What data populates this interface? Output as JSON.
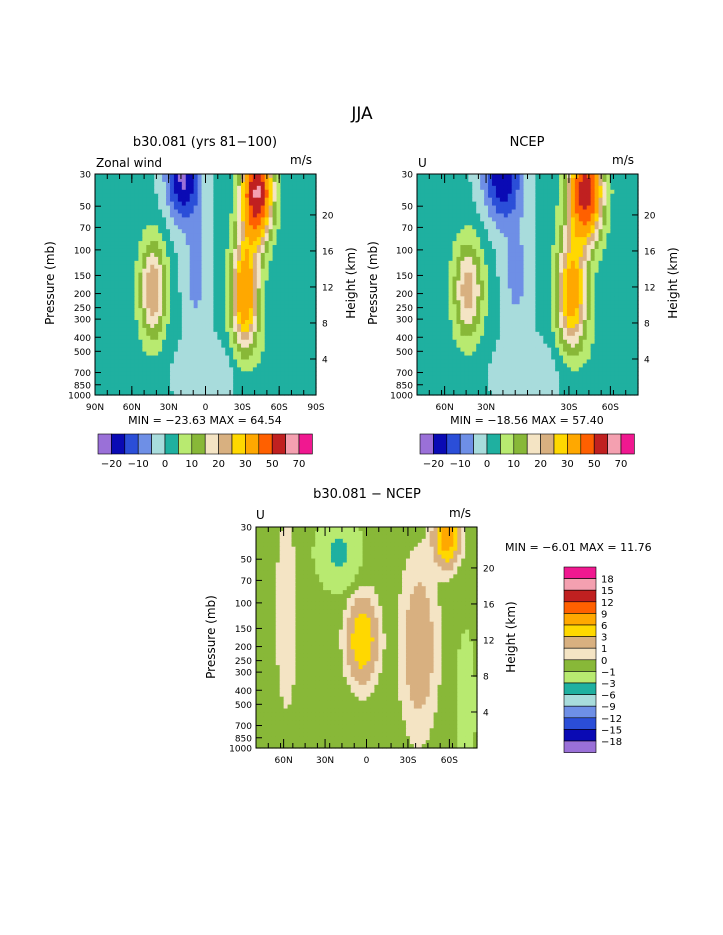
{
  "figure": {
    "title": "JJA"
  },
  "panels": [
    {
      "title": "b30.081 (yrs 81−100)",
      "label_left": "Zonal wind",
      "units": "m/s",
      "ylabel": "Pressure (mb)",
      "ylabel_right": "Height (km)",
      "stats": "MIN = −23.63   MAX =  64.54"
    },
    {
      "title": "NCEP",
      "label_left": "U",
      "units": "m/s",
      "ylabel": "Pressure (mb)",
      "ylabel_right": "Height (km)",
      "stats": "MIN = −18.56   MAX =  57.40"
    },
    {
      "title": "b30.081 − NCEP",
      "label_left": "U",
      "units": "m/s",
      "ylabel": "Pressure (mb)",
      "ylabel_right": "Height (km)",
      "stats": "MIN =   −6.01   MAX =  11.76"
    }
  ],
  "colors": {
    "wind_scale": [
      "#9a70d8",
      "#0a0ab4",
      "#2b4ed8",
      "#6e8fe6",
      "#a8dcdc",
      "#1fb0a0",
      "#b8ea70",
      "#88b838",
      "#f4e4c4",
      "#d8b080",
      "#ffd800",
      "#ffa800",
      "#ff6000",
      "#c02020",
      "#f4a0b0",
      "#f01890"
    ],
    "diff_scale": [
      "#9a70d8",
      "#0a0ab4",
      "#2b4ed8",
      "#6e8fe6",
      "#a8dcdc",
      "#1fb0a0",
      "#b8ea70",
      "#88b838",
      "#f4e4c4",
      "#d8b080",
      "#ffd800",
      "#ffa800",
      "#ff6000",
      "#c02020",
      "#f4a0b0",
      "#f01890"
    ]
  },
  "chart_data": [
    {
      "type": "heatmap",
      "title": "b30.081 (yrs 81−100)",
      "ylabel": "Pressure (mb)",
      "y2label": "Height (km)",
      "x_ticks": [
        "90N",
        "60N",
        "30N",
        "0",
        "30S",
        "60S",
        "90S"
      ],
      "y_ticks": [
        "30",
        "50",
        "70",
        "100",
        "150",
        "200",
        "250",
        "300",
        "400",
        "500",
        "700",
        "850",
        "1000"
      ],
      "y2_ticks": [
        "4",
        "8",
        "12",
        "16",
        "20"
      ],
      "colorbar_levels": [
        "−20",
        "−10",
        "0",
        "10",
        "20",
        "30",
        "50",
        "70"
      ],
      "min": -23.63,
      "max": 64.54
    },
    {
      "type": "heatmap",
      "title": "NCEP",
      "ylabel": "Pressure (mb)",
      "y2label": "Height (km)",
      "x_ticks": [
        "60N",
        "30N",
        "30S",
        "60S"
      ],
      "y_ticks": [
        "30",
        "50",
        "70",
        "100",
        "150",
        "200",
        "250",
        "300",
        "400",
        "500",
        "700",
        "850",
        "1000"
      ],
      "y2_ticks": [
        "4",
        "8",
        "12",
        "16",
        "20"
      ],
      "colorbar_levels": [
        "−20",
        "−10",
        "0",
        "10",
        "20",
        "30",
        "50",
        "70"
      ],
      "min": -18.56,
      "max": 57.4
    },
    {
      "type": "heatmap",
      "title": "b30.081 − NCEP",
      "ylabel": "Pressure (mb)",
      "y2label": "Height (km)",
      "x_ticks": [
        "60N",
        "30N",
        "0",
        "30S",
        "60S"
      ],
      "y_ticks": [
        "30",
        "50",
        "70",
        "100",
        "150",
        "200",
        "250",
        "300",
        "400",
        "500",
        "700",
        "850",
        "1000"
      ],
      "y2_ticks": [
        "4",
        "8",
        "12",
        "16",
        "20"
      ],
      "colorbar_levels": [
        "18",
        "15",
        "12",
        "9",
        "6",
        "3",
        "1",
        "0",
        "−1",
        "−3",
        "−6",
        "−9",
        "−12",
        "−15",
        "−18"
      ],
      "min": -6.01,
      "max": 11.76
    }
  ]
}
